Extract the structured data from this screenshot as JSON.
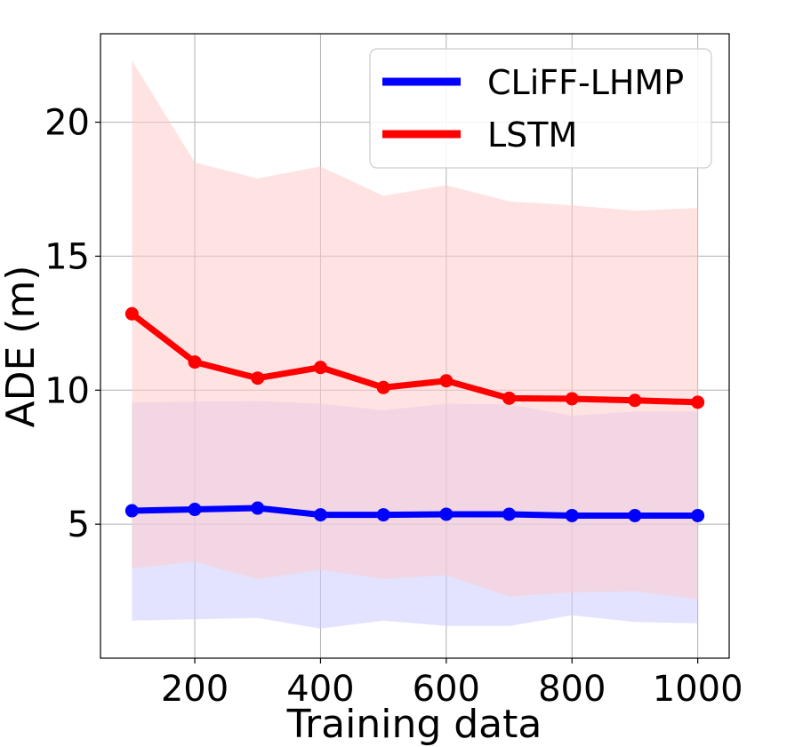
{
  "chart_data": {
    "type": "line",
    "xlabel": "Training data",
    "ylabel": "ADE (m)",
    "xlim": [
      50,
      1050
    ],
    "ylim": [
      0,
      23.3
    ],
    "xticks": [
      200,
      400,
      600,
      800,
      1000
    ],
    "xtick_labels": [
      "200",
      "400",
      "600",
      "800",
      "1000"
    ],
    "yticks": [
      5,
      10,
      15,
      20
    ],
    "ytick_labels": [
      "5",
      "10",
      "15",
      "20"
    ],
    "grid": true,
    "legend_position": "top-right",
    "x": [
      100,
      200,
      300,
      400,
      500,
      600,
      700,
      800,
      900,
      1000
    ],
    "series": [
      {
        "name": "CLiFF-LHMP",
        "color": "#0000ff",
        "band_color": "#ccccff",
        "values": [
          5.5,
          5.55,
          5.6,
          5.35,
          5.35,
          5.37,
          5.37,
          5.32,
          5.32,
          5.32
        ],
        "lower": [
          1.4,
          1.45,
          1.5,
          1.1,
          1.4,
          1.2,
          1.2,
          1.6,
          1.35,
          1.3
        ],
        "upper": [
          9.55,
          9.58,
          9.6,
          9.5,
          9.25,
          9.5,
          9.47,
          9.05,
          9.2,
          9.2
        ]
      },
      {
        "name": "LSTM",
        "color": "#ff0000",
        "band_color": "#ffcccc",
        "values": [
          12.85,
          11.05,
          10.45,
          10.85,
          10.1,
          10.35,
          9.7,
          9.68,
          9.62,
          9.55
        ],
        "lower": [
          3.35,
          3.6,
          2.95,
          3.3,
          2.95,
          3.1,
          2.3,
          2.45,
          2.5,
          2.2
        ],
        "upper": [
          22.3,
          18.5,
          17.9,
          18.35,
          17.25,
          17.65,
          17.05,
          16.9,
          16.7,
          16.8
        ]
      }
    ]
  }
}
